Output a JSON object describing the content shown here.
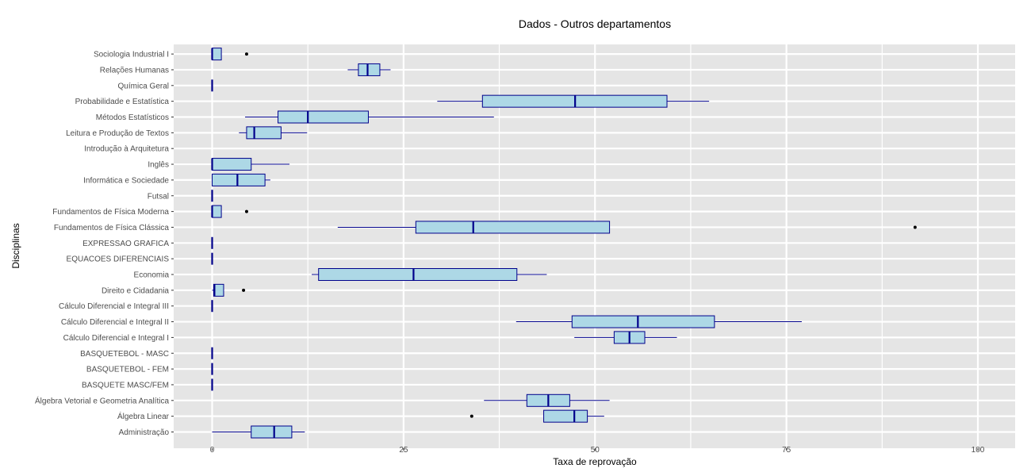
{
  "chart_data": {
    "type": "boxplot",
    "orientation": "horizontal",
    "title": "Dados - Outros departamentos",
    "xlabel": "Taxa de reprovação",
    "ylabel": "Disciplinas",
    "xlim": [
      -5,
      105
    ],
    "xticks": [
      0,
      25,
      50,
      75,
      100
    ],
    "xtick_labels": [
      "0",
      "25",
      "50",
      "75",
      "100"
    ],
    "grid": true,
    "box_fill": "#add8e6",
    "box_stroke": "#00008b",
    "panel_background": "#e5e5e5",
    "gridline_color": "#ffffff",
    "categories": [
      "Administração",
      "Álgebra Linear",
      "Álgebra Vetorial e Geometria Analítica",
      "BASQUETE   MASC/FEM",
      "BASQUETEBOL - FEM",
      "BASQUETEBOL - MASC",
      "Cálculo Diferencial e Integral I",
      "Cálculo Diferencial e Integral II",
      "Cálculo Diferencial e Integral III",
      "Direito e Cidadania",
      "Economia",
      "EQUACOES DIFERENCIAIS",
      "EXPRESSAO GRAFICA",
      "Fundamentos de Física Clássica",
      "Fundamentos de Física Moderna",
      "Futsal",
      "Informática e Sociedade",
      "Inglês",
      "Introdução à Arquitetura",
      "Leitura e Produção de Textos",
      "Métodos Estatísticos",
      "Probabilidade e Estatística",
      "Química Geral",
      "Relações Humanas",
      "Sociologia Industrial I"
    ],
    "boxes": [
      {
        "min": 0,
        "q1": 5.1,
        "median": 8.1,
        "q3": 10.4,
        "max": 12.1,
        "outliers": []
      },
      {
        "min": 43.3,
        "q1": 43.3,
        "median": 47.3,
        "q3": 49.0,
        "max": 51.2,
        "outliers": [
          33.9
        ]
      },
      {
        "min": 35.5,
        "q1": 41.1,
        "median": 43.9,
        "q3": 46.7,
        "max": 51.9,
        "outliers": []
      },
      {
        "min": 0,
        "q1": 0,
        "median": 0,
        "q3": 0,
        "max": 0,
        "outliers": []
      },
      {
        "min": 0,
        "q1": 0,
        "median": 0,
        "q3": 0,
        "max": 0,
        "outliers": []
      },
      {
        "min": 0,
        "q1": 0,
        "median": 0,
        "q3": 0,
        "max": 0,
        "outliers": []
      },
      {
        "min": 47.3,
        "q1": 52.5,
        "median": 54.5,
        "q3": 56.5,
        "max": 60.7,
        "outliers": []
      },
      {
        "min": 39.7,
        "q1": 47.0,
        "median": 55.6,
        "q3": 65.6,
        "max": 77.0,
        "outliers": []
      },
      {
        "min": 0,
        "q1": 0,
        "median": 0,
        "q3": 0,
        "max": 0,
        "outliers": []
      },
      {
        "min": 0,
        "q1": 0.2,
        "median": 0.3,
        "q3": 1.5,
        "max": 1.5,
        "outliers": [
          4.1
        ]
      },
      {
        "min": 13.0,
        "q1": 13.9,
        "median": 26.3,
        "q3": 39.8,
        "max": 43.7,
        "outliers": []
      },
      {
        "min": 0,
        "q1": 0,
        "median": 0,
        "q3": 0,
        "max": 0,
        "outliers": []
      },
      {
        "min": 0,
        "q1": 0,
        "median": 0,
        "q3": 0,
        "max": 0,
        "outliers": []
      },
      {
        "min": 16.4,
        "q1": 26.6,
        "median": 34.1,
        "q3": 51.9,
        "max": 51.9,
        "outliers": [
          91.8
        ]
      },
      {
        "min": 0,
        "q1": 0,
        "median": 0,
        "q3": 1.2,
        "max": 1.2,
        "outliers": [
          4.5
        ]
      },
      {
        "min": 0,
        "q1": 0,
        "median": 0,
        "q3": 0,
        "max": 0,
        "outliers": []
      },
      {
        "min": 0,
        "q1": 0,
        "median": 3.3,
        "q3": 6.9,
        "max": 7.6,
        "outliers": []
      },
      {
        "min": 0,
        "q1": 0,
        "median": 0,
        "q3": 5.1,
        "max": 10.1,
        "outliers": []
      },
      {
        "min": null,
        "q1": null,
        "median": null,
        "q3": null,
        "max": null,
        "outliers": []
      },
      {
        "min": 3.5,
        "q1": 4.5,
        "median": 5.5,
        "q3": 9.0,
        "max": 12.4,
        "outliers": []
      },
      {
        "min": 4.3,
        "q1": 8.6,
        "median": 12.5,
        "q3": 20.4,
        "max": 36.8,
        "outliers": []
      },
      {
        "min": 29.4,
        "q1": 35.3,
        "median": 47.4,
        "q3": 59.4,
        "max": 64.9,
        "outliers": []
      },
      {
        "min": 0,
        "q1": 0,
        "median": 0,
        "q3": 0,
        "max": 0,
        "outliers": []
      },
      {
        "min": 17.7,
        "q1": 19.1,
        "median": 20.3,
        "q3": 21.9,
        "max": 23.3,
        "outliers": []
      },
      {
        "min": 0,
        "q1": 0,
        "median": 0,
        "q3": 1.2,
        "max": 1.2,
        "outliers": [
          4.5
        ]
      }
    ]
  }
}
